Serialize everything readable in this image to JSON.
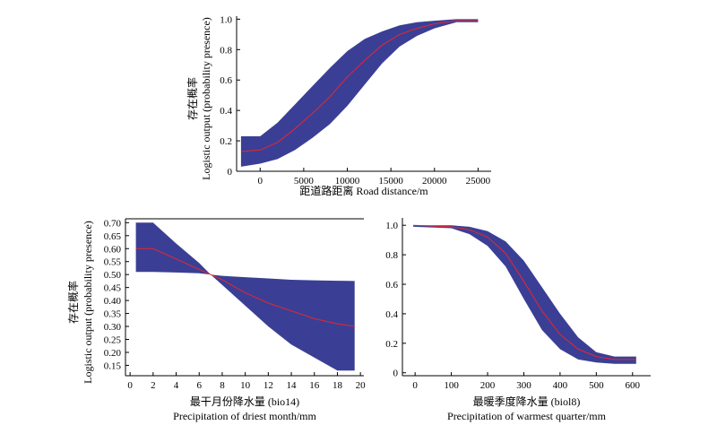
{
  "chart_data": [
    {
      "id": "road",
      "type": "area",
      "xlabel": "距道路距离  Road distance/m",
      "ylabel_cn": "存在概率",
      "ylabel_en": "Logistic output (probability presence)",
      "xlim": [
        -2700,
        26500
      ],
      "ylim": [
        0,
        1.02
      ],
      "xticks": [
        0,
        5000,
        10000,
        15000,
        20000,
        25000
      ],
      "yticks": [
        0,
        0.2,
        0.4,
        0.6,
        0.8,
        1.0
      ],
      "ytick_labels": [
        "0",
        "0.2",
        "0.4",
        "0.6",
        "0.8",
        "1.0"
      ],
      "x": [
        -2200,
        0,
        2000,
        4000,
        6000,
        8000,
        10000,
        12000,
        14000,
        16000,
        18000,
        20000,
        22500,
        25000
      ],
      "mean": [
        0.13,
        0.14,
        0.19,
        0.28,
        0.38,
        0.49,
        0.62,
        0.73,
        0.83,
        0.9,
        0.94,
        0.97,
        0.99,
        0.99
      ],
      "upper": [
        0.23,
        0.23,
        0.32,
        0.44,
        0.56,
        0.68,
        0.79,
        0.87,
        0.92,
        0.96,
        0.98,
        0.99,
        1.0,
        1.0
      ],
      "lower": [
        0.03,
        0.05,
        0.08,
        0.14,
        0.22,
        0.31,
        0.43,
        0.57,
        0.71,
        0.82,
        0.89,
        0.94,
        0.98,
        0.98
      ]
    },
    {
      "id": "bio14",
      "type": "area",
      "xlabel_cn": "最干月份降水量 (bio14)",
      "xlabel_en": "Precipitation of driest month/mm",
      "ylabel_cn": "存在概率",
      "ylabel_en": "Logistic output (probability presence)",
      "xlim": [
        -0.4,
        20.3
      ],
      "ylim": [
        0.11,
        0.715
      ],
      "xticks": [
        0,
        2,
        4,
        6,
        8,
        10,
        12,
        14,
        16,
        18,
        20
      ],
      "yticks": [
        0.15,
        0.2,
        0.25,
        0.3,
        0.35,
        0.4,
        0.45,
        0.5,
        0.55,
        0.6,
        0.65,
        0.7
      ],
      "ytick_labels": [
        "0.15",
        "0.20",
        "0.25",
        "0.30",
        "0.35",
        "0.40",
        "0.45",
        "0.50",
        "0.55",
        "0.60",
        "0.65",
        "0.70"
      ],
      "x": [
        0.5,
        2,
        4,
        6,
        7,
        8,
        10,
        12,
        14,
        16,
        18,
        19.5
      ],
      "mean": [
        0.6,
        0.6,
        0.56,
        0.52,
        0.5,
        0.48,
        0.43,
        0.39,
        0.36,
        0.33,
        0.31,
        0.3
      ],
      "upper": [
        0.7,
        0.7,
        0.62,
        0.545,
        0.5,
        0.495,
        0.49,
        0.485,
        0.48,
        0.478,
        0.476,
        0.475
      ],
      "lower": [
        0.51,
        0.51,
        0.508,
        0.505,
        0.5,
        0.46,
        0.38,
        0.3,
        0.23,
        0.18,
        0.13,
        0.13
      ]
    },
    {
      "id": "bio8",
      "type": "area",
      "xlabel_cn": "最暖季度降水量 (biol8)",
      "xlabel_en": "Precipitation of warmest quarter/mm",
      "xlim": [
        -35,
        650
      ],
      "ylim": [
        -0.02,
        1.05
      ],
      "xticks": [
        0,
        100,
        200,
        300,
        400,
        500,
        600
      ],
      "yticks": [
        0,
        0.2,
        0.4,
        0.6,
        0.8,
        1.0
      ],
      "ytick_labels": [
        "0",
        "0.2",
        "0.4",
        "0.6",
        "0.8",
        "1.0"
      ],
      "x": [
        -5,
        100,
        150,
        200,
        250,
        300,
        350,
        400,
        450,
        500,
        550,
        610
      ],
      "mean": [
        1.0,
        0.99,
        0.97,
        0.92,
        0.81,
        0.62,
        0.42,
        0.26,
        0.16,
        0.11,
        0.09,
        0.09
      ],
      "upper": [
        1.0,
        1.0,
        0.99,
        0.96,
        0.89,
        0.76,
        0.58,
        0.4,
        0.24,
        0.14,
        0.11,
        0.11
      ],
      "lower": [
        0.99,
        0.98,
        0.94,
        0.86,
        0.72,
        0.5,
        0.29,
        0.16,
        0.09,
        0.07,
        0.06,
        0.06
      ]
    }
  ]
}
